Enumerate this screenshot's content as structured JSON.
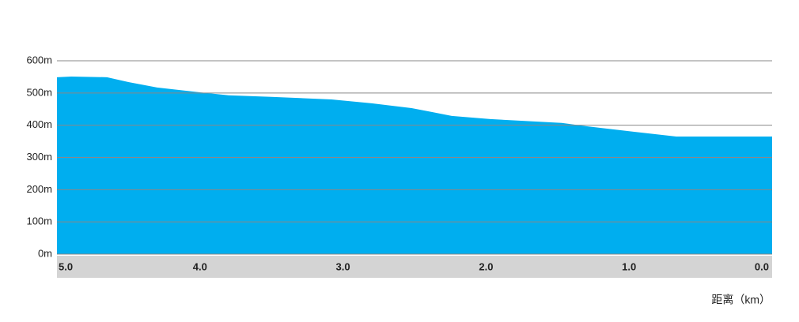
{
  "chart_data": {
    "type": "area",
    "x_label": "距离（km）",
    "x": [
      5.0,
      4.9,
      4.65,
      4.5,
      4.3,
      4.0,
      3.8,
      3.5,
      3.08,
      2.8,
      2.52,
      2.38,
      2.24,
      1.97,
      1.47,
      1.3,
      0.97,
      0.67,
      0.0
    ],
    "values": [
      549,
      551,
      549,
      534,
      517,
      502,
      493,
      488,
      480,
      468,
      453,
      441,
      429,
      419,
      407,
      397,
      380,
      365,
      365
    ],
    "color": "#00aeef",
    "xlim": [
      5.0,
      0.0
    ],
    "xticks": [
      {
        "value": 5,
        "label": "5.0"
      },
      {
        "value": 4,
        "label": "4.0"
      },
      {
        "value": 3,
        "label": "3.0"
      },
      {
        "value": 2,
        "label": "2.0"
      },
      {
        "value": 1,
        "label": "1.0"
      },
      {
        "value": 0,
        "label": "0.0"
      }
    ],
    "ylim": [
      0,
      600
    ],
    "yticks": [
      {
        "value": 0,
        "label": "0m"
      },
      {
        "value": 100,
        "label": "100m"
      },
      {
        "value": 200,
        "label": "200m"
      },
      {
        "value": 300,
        "label": "300m"
      },
      {
        "value": 400,
        "label": "400m"
      },
      {
        "value": 500,
        "label": "500m"
      },
      {
        "value": 600,
        "label": "600m"
      }
    ],
    "grid": true
  }
}
